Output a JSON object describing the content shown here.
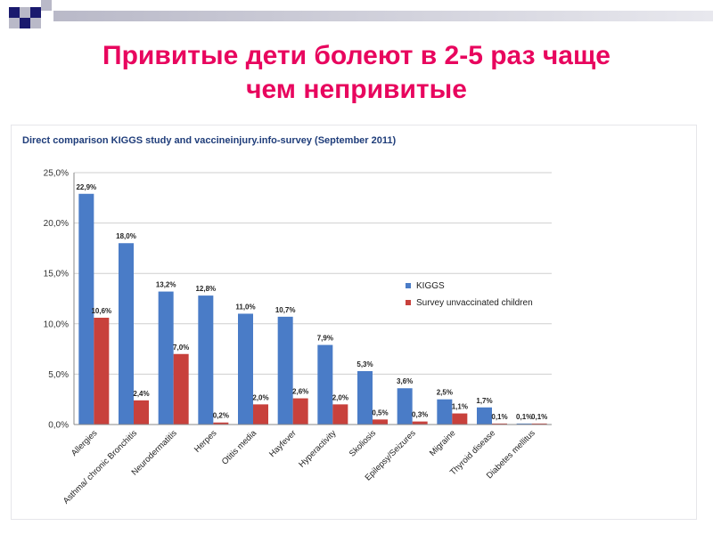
{
  "slide": {
    "title_line1": "Привитые дети болеют в 2-5 раз чаще",
    "title_line2": "чем непривитые"
  },
  "colors": {
    "title": "#e8065e",
    "accent_dark": "#1a1a6e",
    "accent_light": "#b9b9c8",
    "kiggs": "#4a7cc7",
    "survey": "#c8413c"
  },
  "chart_data": {
    "type": "bar",
    "title": "Direct comparison KIGGS study and vaccineinjury.info-survey (September 2011)",
    "categories": [
      "Allergies",
      "Asthma/ chronic Bronchitis",
      "Neurodermatitis",
      "Herpes",
      "Otitis media",
      "Hayfever",
      "Hyperactivity",
      "Skoliosis",
      "Epilepsy/Seizures",
      "Migraine",
      "Thyroid disease",
      "Diabetes mellitus"
    ],
    "series": [
      {
        "name": "KIGGS",
        "color": "#4a7cc7",
        "values": [
          22.9,
          18.0,
          13.2,
          12.8,
          11.0,
          10.7,
          7.9,
          5.3,
          3.6,
          2.5,
          1.7,
          0.1
        ],
        "labels": [
          "22,9%",
          "18,0%",
          "13,2%",
          "12,8%",
          "11,0%",
          "10,7%",
          "7,9%",
          "5,3%",
          "3,6%",
          "2,5%",
          "1,7%",
          "0,1%"
        ]
      },
      {
        "name": "Survey unvaccinated children",
        "color": "#c8413c",
        "values": [
          10.6,
          2.4,
          7.0,
          0.2,
          2.0,
          2.6,
          2.0,
          0.5,
          0.3,
          1.1,
          0.1,
          0.1
        ],
        "labels": [
          "10,6%",
          "2,4%",
          "7,0%",
          "0,2%",
          "2,0%",
          "2,6%",
          "2,0%",
          "0,5%",
          "0,3%",
          "1,1%",
          "0,1%",
          "0,1%"
        ]
      }
    ],
    "yticks": [
      "0,0%",
      "5,0%",
      "10,0%",
      "15,0%",
      "20,0%",
      "25,0%"
    ],
    "ylim": [
      0,
      25
    ],
    "grid": true,
    "legend_position": "center-right"
  }
}
